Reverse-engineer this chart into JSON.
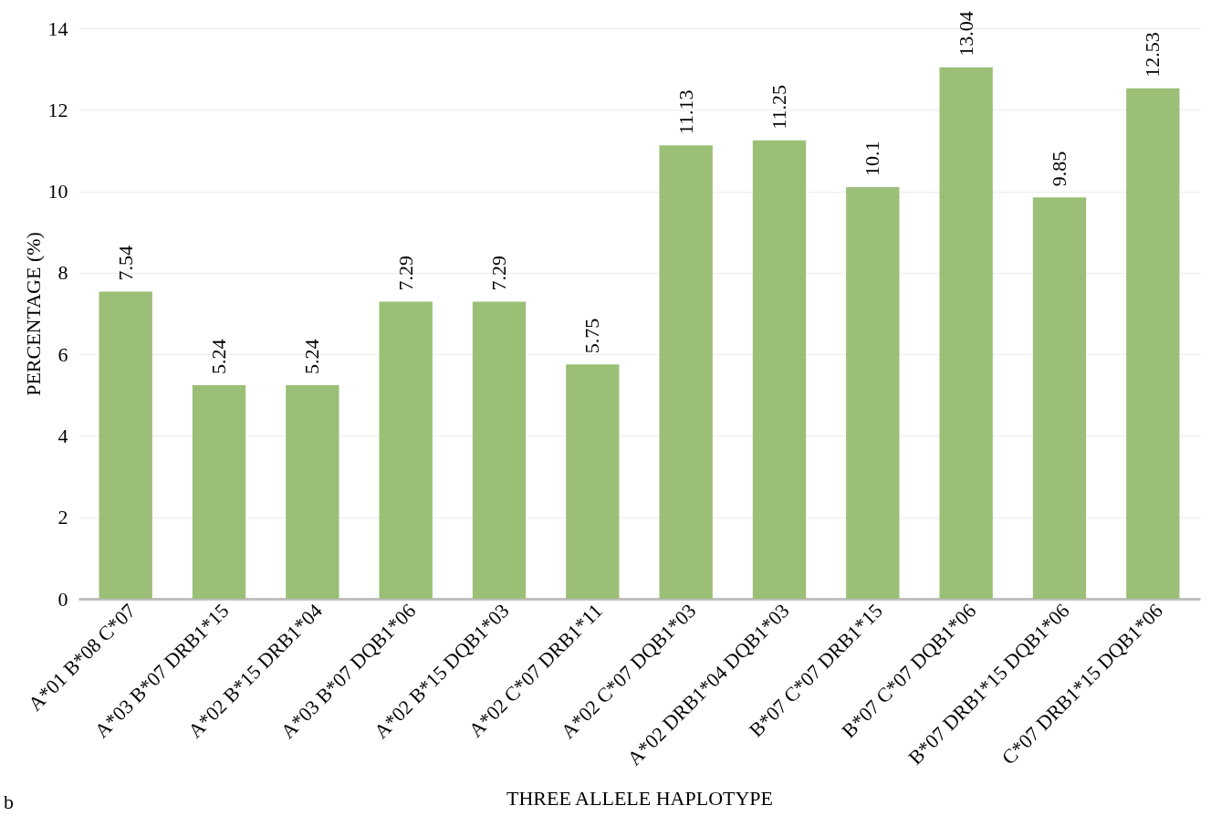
{
  "chart_data": {
    "type": "bar",
    "xlabel": "THREE ALLELE HAPLOTYPE",
    "ylabel": "PERCENTAGE (%)",
    "categories": [
      "A*01 B*08 C*07",
      "A*03 B*07 DRB1*15",
      "A*02 B*15 DRB1*04",
      "A*03 B*07 DQB1*06",
      "A*02 B*15 DQB1*03",
      "A*02 C*07 DRB1*11",
      "A*02 C*07 DQB1*03",
      "A*02 DRB1*04 DQB1*03",
      "B*07 C*07 DRB1*15",
      "B*07 C*07 DQB1*06",
      "B*07 DRB1*15 DQB1*06",
      "C*07 DRB1*15 DQB1*06"
    ],
    "values": [
      7.54,
      5.24,
      5.24,
      7.29,
      7.29,
      5.75,
      11.13,
      11.25,
      10.1,
      13.04,
      9.85,
      12.53
    ],
    "color": "#9bbf76",
    "ylim": [
      0,
      14
    ],
    "yticks": [
      0,
      2,
      4,
      6,
      8,
      10,
      12,
      14
    ],
    "grid": "y",
    "data_labels": true,
    "annotations": [
      "b"
    ]
  }
}
